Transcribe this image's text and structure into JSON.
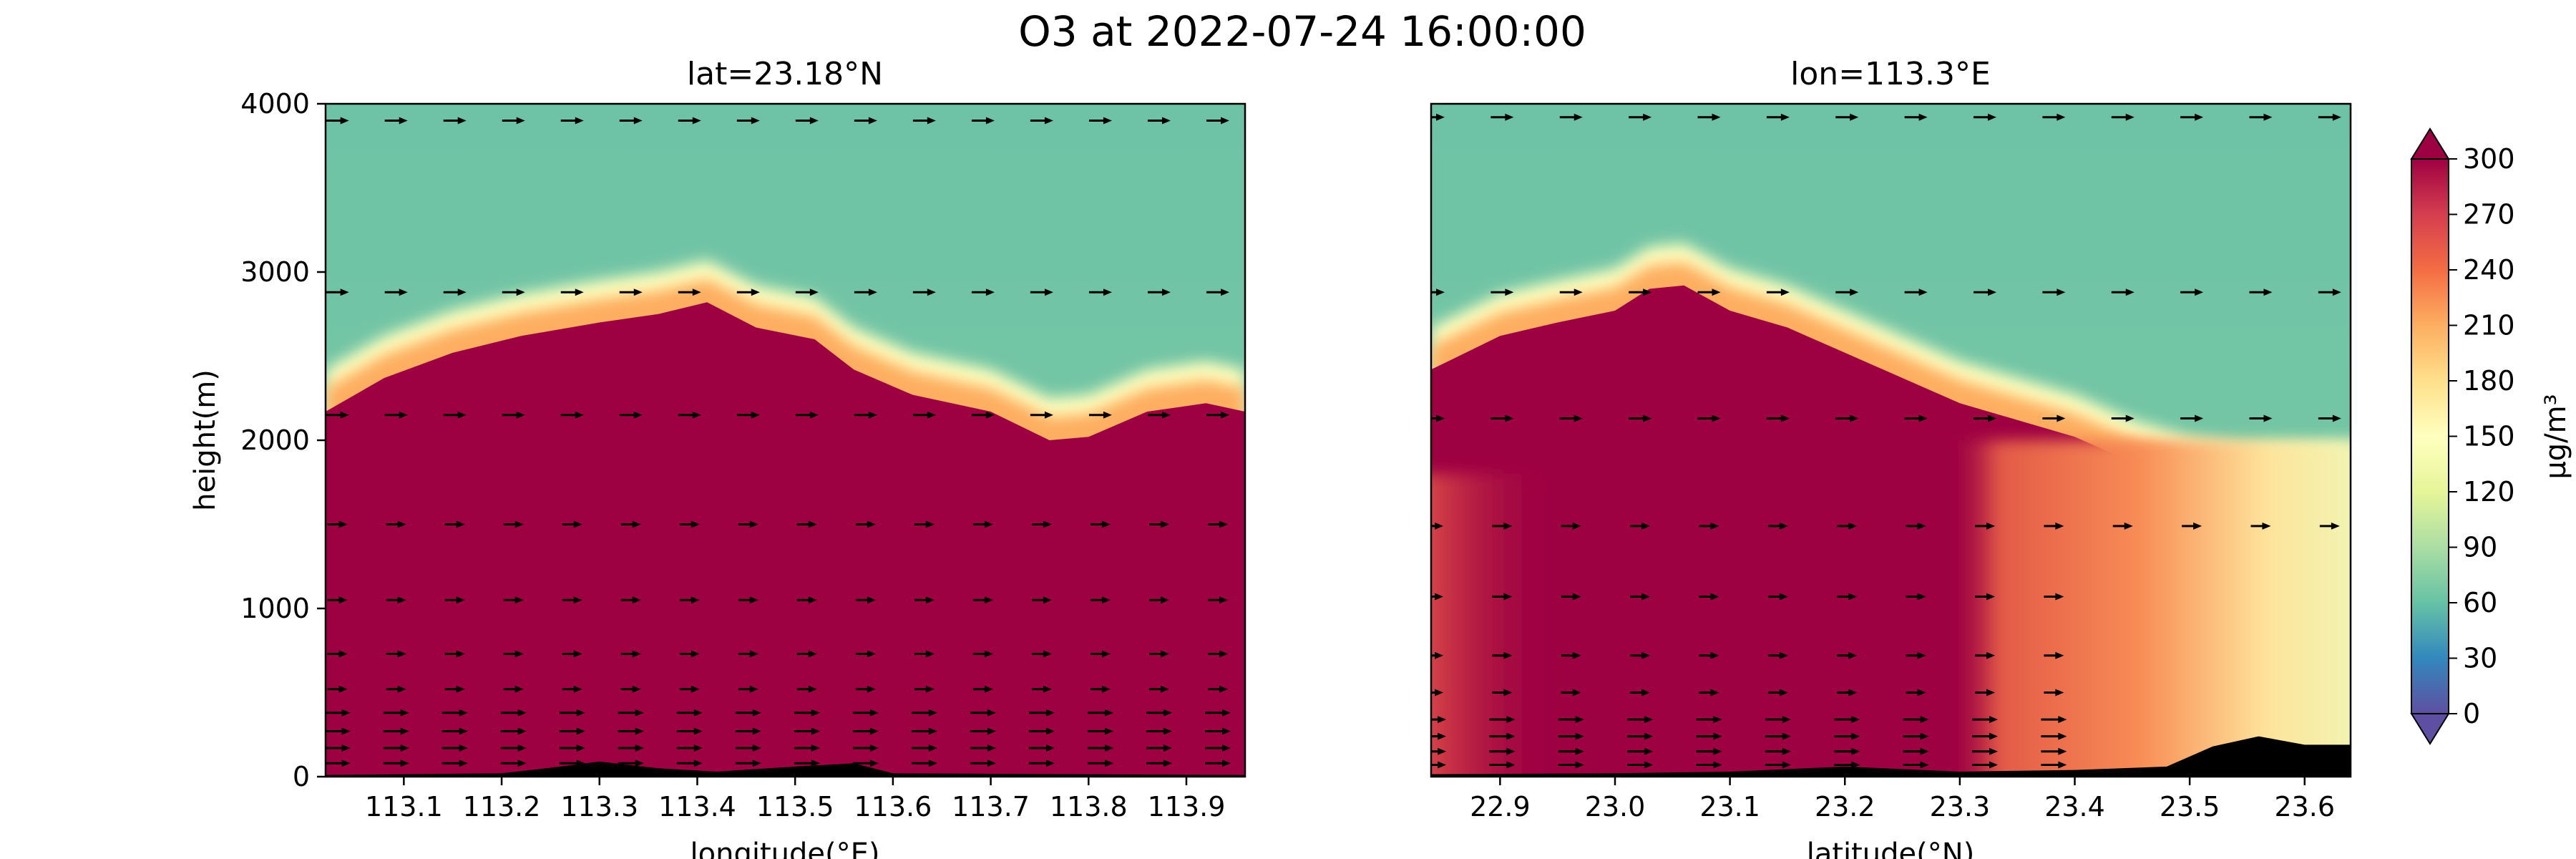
{
  "figure": {
    "title": "O3 at 2022-07-24 16:00:00"
  },
  "chart_data": [
    {
      "type": "heatmap",
      "title": "lat=23.18°N",
      "xlabel": "longitude(°E)",
      "ylabel": "height(m)",
      "xlim": [
        113.02,
        113.96
      ],
      "ylim": [
        0,
        4000
      ],
      "xticks": [
        "113.1",
        "113.2",
        "113.3",
        "113.4",
        "113.5",
        "113.6",
        "113.7",
        "113.8",
        "113.9"
      ],
      "yticks": [
        "0",
        "1000",
        "2000",
        "3000",
        "4000"
      ],
      "boundary_layer_top_m": {
        "x": [
          113.02,
          113.08,
          113.15,
          113.22,
          113.3,
          113.36,
          113.41,
          113.46,
          113.52,
          113.56,
          113.62,
          113.7,
          113.76,
          113.8,
          113.86,
          113.92,
          113.96
        ],
        "y": [
          2250,
          2450,
          2600,
          2700,
          2780,
          2830,
          2900,
          2750,
          2680,
          2500,
          2350,
          2250,
          2080,
          2100,
          2250,
          2300,
          2250
        ]
      },
      "terrain_m": {
        "x": [
          113.02,
          113.2,
          113.26,
          113.3,
          113.36,
          113.42,
          113.5,
          113.56,
          113.6,
          113.96
        ],
        "y": [
          10,
          20,
          60,
          90,
          50,
          30,
          60,
          80,
          20,
          10
        ]
      },
      "values_ug_m3": {
        "below_boundary_layer": 300,
        "free_troposphere": 65
      },
      "wind_vectors_heights_m": [
        3900,
        2880,
        2150,
        1500,
        1050,
        730,
        520,
        380,
        270,
        170,
        80
      ],
      "wind_vector_columns_deg": [
        113.03,
        113.09,
        113.15,
        113.21,
        113.27,
        113.33,
        113.39,
        113.45,
        113.51,
        113.57,
        113.63,
        113.69,
        113.75,
        113.81,
        113.87,
        113.93
      ]
    },
    {
      "type": "heatmap",
      "title": "lon=113.3°E",
      "xlabel": "latitude(°N)",
      "ylabel": "",
      "xlim": [
        22.84,
        23.64
      ],
      "ylim": [
        0,
        4000
      ],
      "xticks": [
        "22.9",
        "23.0",
        "23.1",
        "23.2",
        "23.3",
        "23.4",
        "23.5",
        "23.6"
      ],
      "yticks": [],
      "boundary_layer_top_m": {
        "x": [
          22.84,
          22.9,
          22.95,
          23.0,
          23.03,
          23.06,
          23.1,
          23.15,
          23.2,
          23.25,
          23.3,
          23.35,
          23.4,
          23.45,
          23.5,
          23.55,
          23.6,
          23.64
        ],
        "y": [
          2500,
          2700,
          2780,
          2850,
          2980,
          3000,
          2850,
          2750,
          2600,
          2450,
          2300,
          2200,
          2100,
          1950,
          1850,
          1800,
          1800,
          1800
        ]
      },
      "terrain_m": {
        "x": [
          22.84,
          23.0,
          23.1,
          23.2,
          23.3,
          23.4,
          23.48,
          23.52,
          23.56,
          23.6,
          23.64
        ],
        "y": [
          15,
          20,
          30,
          60,
          30,
          40,
          60,
          180,
          240,
          190,
          190
        ]
      },
      "values_ug_m3": {
        "below_boundary_layer_core": 300,
        "below_boundary_layer_north": 200,
        "near_surface_far_north": 120,
        "free_troposphere": 65
      },
      "wind_vectors_heights_m": [
        3920,
        2880,
        2130,
        1490,
        1070,
        720,
        500,
        340,
        240,
        150,
        70
      ],
      "wind_vector_columns_deg": [
        22.84,
        22.9,
        22.96,
        23.02,
        23.08,
        23.14,
        23.2,
        23.26,
        23.32,
        23.38,
        23.44,
        23.5,
        23.56,
        23.62
      ]
    },
    {
      "type": "heatmap",
      "title": "",
      "ylabel": "μg/m³",
      "colormap": "Spectral_r",
      "vmin": 0,
      "vmax": 300,
      "ticks": [
        "0",
        "30",
        "60",
        "90",
        "120",
        "150",
        "180",
        "210",
        "240",
        "270",
        "300"
      ],
      "extend": "both",
      "colors": [
        "#5e4fa2",
        "#3288bd",
        "#66c2a5",
        "#abdda4",
        "#e6f598",
        "#ffffbf",
        "#fee08b",
        "#fdae61",
        "#f46d43",
        "#d53e4f",
        "#9e0142"
      ]
    }
  ]
}
